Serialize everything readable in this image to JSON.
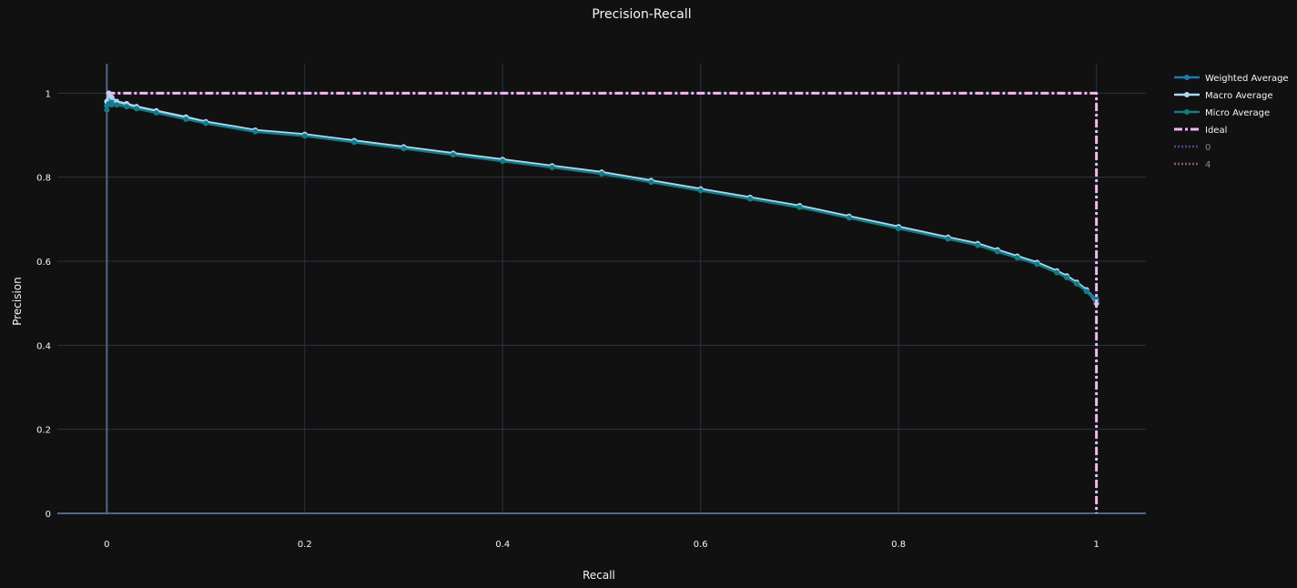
{
  "colors": {
    "background": "#111111",
    "grid": "#283442",
    "axis_line": "#506784",
    "text": "#f2f5fa",
    "weighted": "#1f77b4",
    "macro": "#aed6f1",
    "micro": "#137b86",
    "ideal": "#f5b7f5",
    "class0": "#5b3f8a",
    "class4": "#8e5a7a"
  },
  "chart_data": {
    "type": "line",
    "title": "Precision-Recall",
    "xlabel": "Recall",
    "ylabel": "Precision",
    "xlim": [
      -0.05,
      1.05
    ],
    "ylim": [
      0,
      1.07
    ],
    "xticks": [
      0,
      0.2,
      0.4,
      0.6,
      0.8,
      1
    ],
    "xtick_labels": [
      "0",
      "0.2",
      "0.4",
      "0.6",
      "0.8",
      "1"
    ],
    "yticks": [
      0,
      0.2,
      0.4,
      0.6,
      0.8,
      1
    ],
    "ytick_labels": [
      "0",
      "0.2",
      "0.4",
      "0.6",
      "0.8",
      "1"
    ],
    "grid": true,
    "legend_position": "top-right",
    "series": [
      {
        "name": "Weighted Average",
        "style": "solid-markers",
        "color_key": "weighted",
        "x": [
          0,
          0.002,
          0.005,
          0.01,
          0.02,
          0.03,
          0.05,
          0.08,
          0.1,
          0.15,
          0.2,
          0.25,
          0.3,
          0.35,
          0.4,
          0.45,
          0.5,
          0.55,
          0.6,
          0.65,
          0.7,
          0.75,
          0.8,
          0.85,
          0.88,
          0.9,
          0.92,
          0.94,
          0.96,
          0.97,
          0.98,
          0.99,
          1.0
        ],
        "y": [
          0.97,
          0.985,
          0.978,
          0.975,
          0.97,
          0.965,
          0.955,
          0.94,
          0.93,
          0.91,
          0.9,
          0.885,
          0.87,
          0.855,
          0.84,
          0.825,
          0.81,
          0.79,
          0.77,
          0.75,
          0.73,
          0.705,
          0.68,
          0.655,
          0.64,
          0.625,
          0.61,
          0.595,
          0.575,
          0.563,
          0.548,
          0.53,
          0.51
        ]
      },
      {
        "name": "Macro Average",
        "style": "solid-markers",
        "color_key": "macro",
        "x": [
          0,
          0.002,
          0.005,
          0.01,
          0.02,
          0.03,
          0.05,
          0.08,
          0.1,
          0.15,
          0.2,
          0.25,
          0.3,
          0.35,
          0.4,
          0.45,
          0.5,
          0.55,
          0.6,
          0.65,
          0.7,
          0.75,
          0.8,
          0.85,
          0.88,
          0.9,
          0.92,
          0.94,
          0.96,
          0.97,
          0.98,
          0.99,
          1.0
        ],
        "y": [
          0.98,
          1.0,
          0.99,
          0.98,
          0.975,
          0.968,
          0.958,
          0.943,
          0.932,
          0.912,
          0.902,
          0.887,
          0.872,
          0.857,
          0.842,
          0.827,
          0.812,
          0.792,
          0.772,
          0.752,
          0.732,
          0.707,
          0.682,
          0.657,
          0.642,
          0.627,
          0.612,
          0.597,
          0.577,
          0.565,
          0.55,
          0.532,
          0.5
        ]
      },
      {
        "name": "Micro Average",
        "style": "solid-markers",
        "color_key": "micro",
        "x": [
          0,
          0.002,
          0.005,
          0.01,
          0.02,
          0.03,
          0.05,
          0.08,
          0.1,
          0.15,
          0.2,
          0.25,
          0.3,
          0.35,
          0.4,
          0.45,
          0.5,
          0.55,
          0.6,
          0.65,
          0.7,
          0.75,
          0.8,
          0.85,
          0.88,
          0.9,
          0.92,
          0.94,
          0.96,
          0.97,
          0.98,
          0.99,
          1.0
        ],
        "y": [
          0.96,
          0.975,
          0.972,
          0.972,
          0.968,
          0.963,
          0.953,
          0.938,
          0.928,
          0.908,
          0.898,
          0.883,
          0.868,
          0.853,
          0.838,
          0.823,
          0.808,
          0.788,
          0.768,
          0.748,
          0.728,
          0.703,
          0.678,
          0.653,
          0.638,
          0.623,
          0.608,
          0.593,
          0.573,
          0.561,
          0.546,
          0.528,
          0.505
        ]
      },
      {
        "name": "Ideal",
        "style": "dashdot",
        "color_key": "ideal",
        "x": [
          0,
          1,
          1
        ],
        "y": [
          1,
          1,
          0
        ]
      },
      {
        "name": "0",
        "style": "dotted-legendonly",
        "color_key": "class0",
        "x": [],
        "y": []
      },
      {
        "name": "4",
        "style": "dotted-legendonly",
        "color_key": "class4",
        "x": [],
        "y": []
      }
    ]
  }
}
